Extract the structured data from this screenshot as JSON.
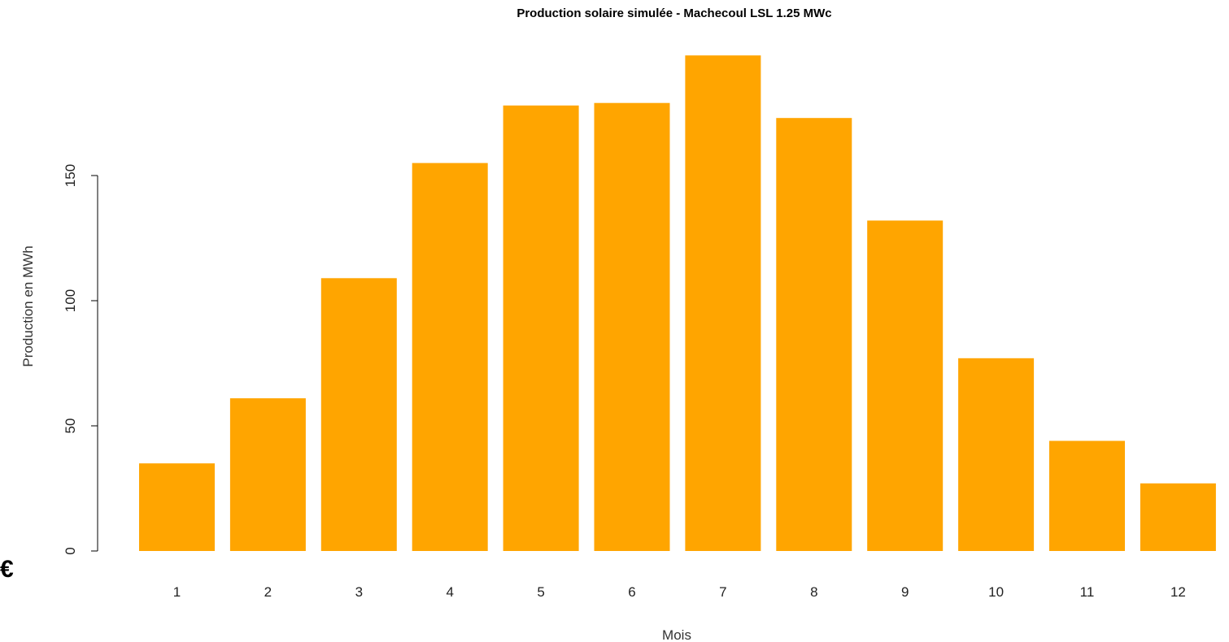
{
  "chart_data": {
    "type": "bar",
    "title": "Production solaire simulée - Machecoul LSL 1.25 MWc",
    "xlabel": "Mois",
    "ylabel": "Production en MWh",
    "categories": [
      "1",
      "2",
      "3",
      "4",
      "5",
      "6",
      "7",
      "8",
      "9",
      "10",
      "11",
      "12"
    ],
    "values": [
      35,
      61,
      109,
      155,
      178,
      179,
      198,
      173,
      132,
      77,
      44,
      27
    ],
    "ylim": [
      0,
      200
    ],
    "y_ticks": [
      "0",
      "50",
      "100",
      "150"
    ],
    "bar_color": "#FFA500",
    "grid": false,
    "legend": "none"
  },
  "corner_symbol": "€"
}
